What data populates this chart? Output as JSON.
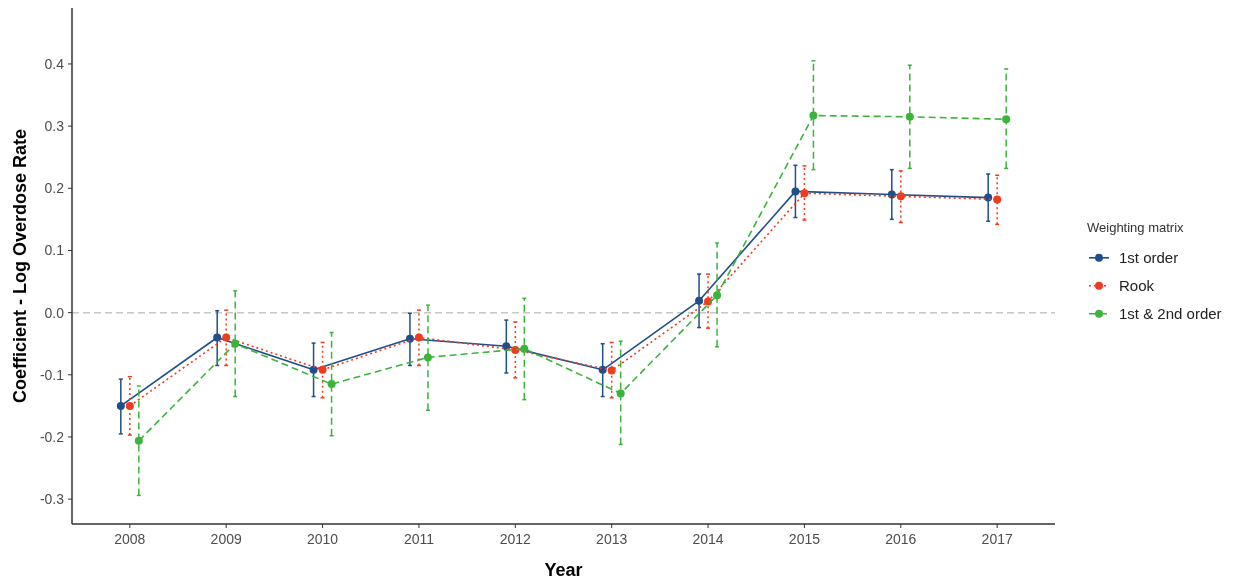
{
  "chart_data": {
    "type": "line",
    "xlabel": "Year",
    "ylabel": "Coefficient - Log Overdose Rate",
    "legend_title": "Weighting matrix",
    "legend": "right",
    "marker": "circle",
    "grid": false,
    "categories": [
      "2008",
      "2009",
      "2010",
      "2011",
      "2012",
      "2013",
      "2014",
      "2015",
      "2016",
      "2017"
    ],
    "ylim": [
      -0.34,
      0.49
    ],
    "yticks": [
      {
        "value": -0.3,
        "label": "-0.3"
      },
      {
        "value": -0.2,
        "label": "-0.2"
      },
      {
        "value": -0.1,
        "label": "-0.1"
      },
      {
        "value": 0,
        "label": "0.0"
      },
      {
        "value": 0.1,
        "label": "0.1"
      },
      {
        "value": 0.2,
        "label": "0.2"
      },
      {
        "value": 0.3,
        "label": "0.3"
      },
      {
        "value": 0.4,
        "label": "0.4"
      }
    ],
    "ref_lines": [
      {
        "axis": "y",
        "value": 0,
        "color": "#c8c8c8",
        "line_style": "dashed"
      }
    ],
    "series": [
      {
        "name": "1st order",
        "color": "#1f4e8c",
        "line_style": "solid",
        "values": [
          -0.15,
          -0.04,
          -0.092,
          -0.042,
          -0.054,
          -0.092,
          0.019,
          0.195,
          0.19,
          0.185
        ],
        "errors": [
          [
            -0.195,
            -0.107
          ],
          [
            -0.085,
            0.003
          ],
          [
            -0.135,
            -0.049
          ],
          [
            -0.085,
            -0.001
          ],
          [
            -0.097,
            -0.012
          ],
          [
            -0.135,
            -0.05
          ],
          [
            -0.024,
            0.062
          ],
          [
            0.153,
            0.237
          ],
          [
            0.15,
            0.23
          ],
          [
            0.147,
            0.223
          ]
        ]
      },
      {
        "name": "Rook",
        "color": "#f03c1e",
        "line_style": "dotted",
        "values": [
          -0.15,
          -0.04,
          -0.092,
          -0.04,
          -0.06,
          -0.093,
          0.018,
          0.192,
          0.187,
          0.182
        ],
        "errors": [
          [
            -0.197,
            -0.103
          ],
          [
            -0.085,
            0.004
          ],
          [
            -0.137,
            -0.048
          ],
          [
            -0.085,
            0.004
          ],
          [
            -0.105,
            -0.015
          ],
          [
            -0.137,
            -0.048
          ],
          [
            -0.025,
            0.062
          ],
          [
            0.149,
            0.236
          ],
          [
            0.145,
            0.228
          ],
          [
            0.142,
            0.221
          ]
        ]
      },
      {
        "name": "1st & 2nd order",
        "color": "#3cb43c",
        "line_style": "dashed",
        "values": [
          -0.206,
          -0.05,
          -0.115,
          -0.072,
          -0.058,
          -0.13,
          0.028,
          0.317,
          0.315,
          0.311
        ],
        "errors": [
          [
            -0.294,
            -0.118
          ],
          [
            -0.135,
            0.035
          ],
          [
            -0.198,
            -0.032
          ],
          [
            -0.157,
            0.012
          ],
          [
            -0.14,
            0.023
          ],
          [
            -0.212,
            -0.046
          ],
          [
            -0.055,
            0.112
          ],
          [
            0.23,
            0.405
          ],
          [
            0.232,
            0.398
          ],
          [
            0.232,
            0.392
          ]
        ]
      }
    ]
  }
}
